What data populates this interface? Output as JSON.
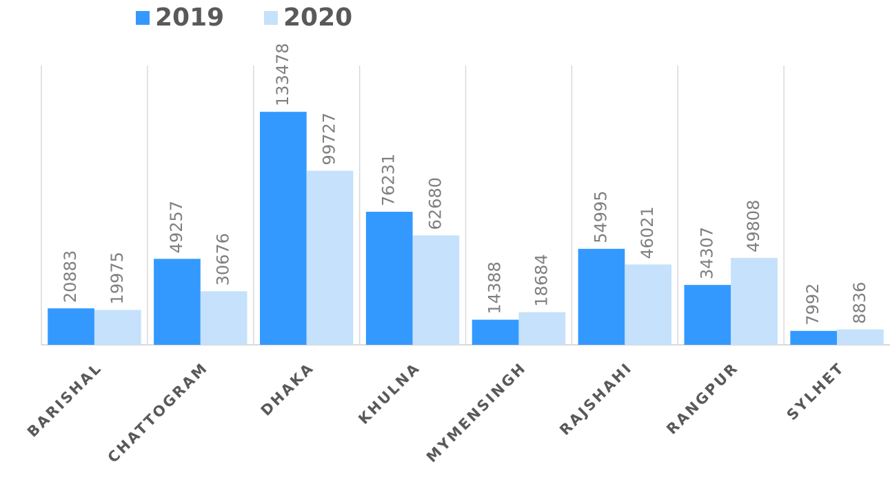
{
  "chart_data": {
    "type": "bar",
    "categories": [
      "BARISHAL",
      "CHATTOGRAM",
      "DHAKA",
      "KHULNA",
      "MYMENSINGH",
      "RAJSHAHI",
      "RANGPUR",
      "SYLHET"
    ],
    "series": [
      {
        "name": "2019",
        "color": "#3399ff",
        "values": [
          20883,
          49257,
          133478,
          76231,
          14388,
          54995,
          34307,
          7992
        ]
      },
      {
        "name": "2020",
        "color": "#c5e1fb",
        "values": [
          19975,
          30676,
          99727,
          62680,
          18684,
          46021,
          49808,
          8836
        ]
      }
    ],
    "ylim": [
      0,
      160000
    ]
  }
}
